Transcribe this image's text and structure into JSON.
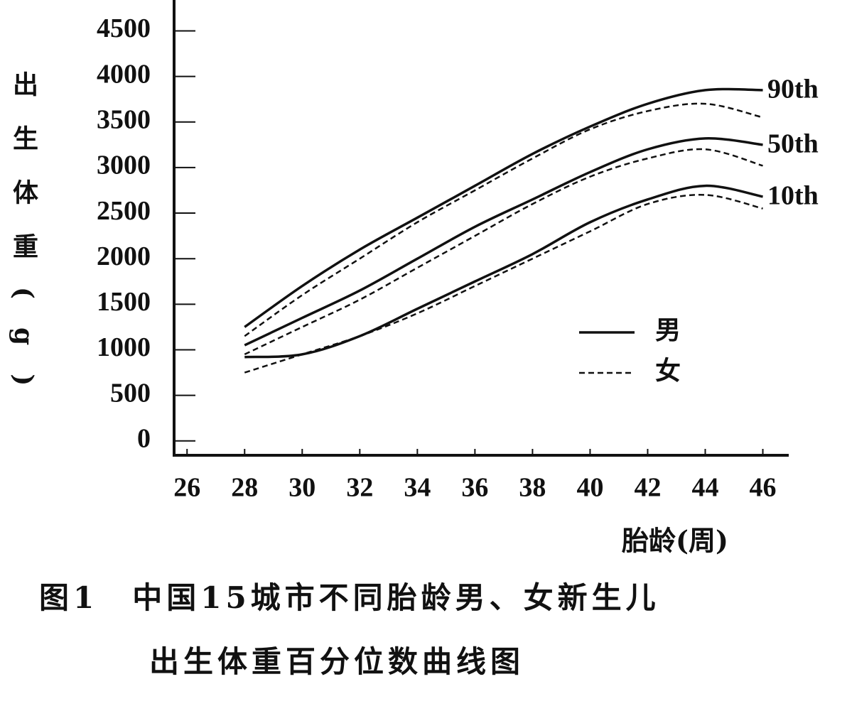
{
  "chart_data": {
    "type": "line",
    "title": [
      "图1　中国15城市不同胎龄男、女新生儿",
      "出生体重百分位数曲线图"
    ],
    "y_label": "出生体重(g)",
    "x_label": "胎龄(周)",
    "x": [
      28,
      30,
      32,
      34,
      36,
      38,
      40,
      42,
      44,
      46
    ],
    "xlim": [
      25.55,
      46.9
    ],
    "xticks": [
      26,
      28,
      30,
      32,
      34,
      36,
      38,
      40,
      42,
      44,
      46
    ],
    "ylim": [
      -150,
      4800
    ],
    "yticks": [
      0,
      500,
      1000,
      1500,
      2000,
      2500,
      3000,
      3500,
      4000,
      4500
    ],
    "color": "#111111",
    "legend": [
      {
        "label": "男",
        "dash": false
      },
      {
        "label": "女",
        "dash": true
      }
    ],
    "percentiles": [
      {
        "label": "90th",
        "male": [
          1250,
          1700,
          2100,
          2450,
          2800,
          3150,
          3450,
          3700,
          3850,
          3850
        ],
        "female": [
          1150,
          1600,
          2000,
          2400,
          2750,
          3100,
          3420,
          3620,
          3700,
          3550
        ]
      },
      {
        "label": "50th",
        "male": [
          1050,
          1350,
          1650,
          2000,
          2350,
          2650,
          2950,
          3200,
          3320,
          3250
        ],
        "female": [
          950,
          1250,
          1550,
          1900,
          2250,
          2600,
          2900,
          3100,
          3200,
          3020
        ]
      },
      {
        "label": "10th",
        "male": [
          920,
          950,
          1150,
          1450,
          1750,
          2050,
          2400,
          2650,
          2800,
          2680
        ],
        "female": [
          750,
          950,
          1150,
          1400,
          1700,
          2000,
          2300,
          2600,
          2700,
          2550
        ]
      }
    ]
  }
}
